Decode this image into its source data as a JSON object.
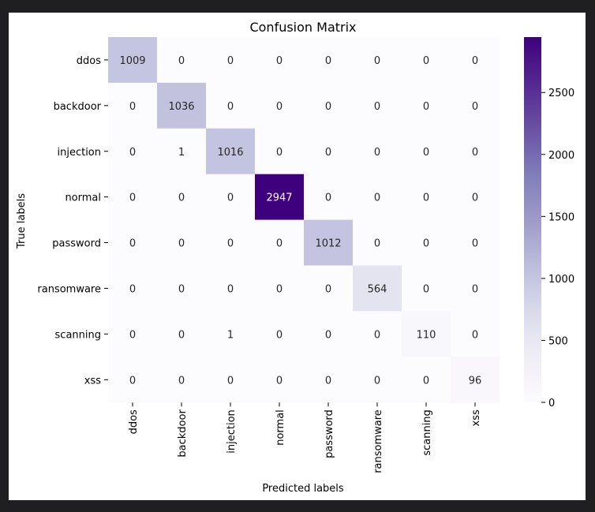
{
  "chart_data": {
    "type": "heatmap",
    "title": "Confusion Matrix",
    "xlabel": "Predicted labels",
    "ylabel": "True labels",
    "row_labels": [
      "ddos",
      "backdoor",
      "injection",
      "normal",
      "password",
      "ransomware",
      "scanning",
      "xss"
    ],
    "col_labels": [
      "ddos",
      "backdoor",
      "injection",
      "normal",
      "password",
      "ransomware",
      "scanning",
      "xss"
    ],
    "values": [
      [
        1009,
        0,
        0,
        0,
        0,
        0,
        0,
        0
      ],
      [
        0,
        1036,
        0,
        0,
        0,
        0,
        0,
        0
      ],
      [
        0,
        1,
        1016,
        0,
        0,
        0,
        0,
        0
      ],
      [
        0,
        0,
        0,
        2947,
        0,
        0,
        0,
        0
      ],
      [
        0,
        0,
        0,
        0,
        1012,
        0,
        0,
        0
      ],
      [
        0,
        0,
        0,
        0,
        0,
        564,
        0,
        0
      ],
      [
        0,
        0,
        1,
        0,
        0,
        0,
        110,
        0
      ],
      [
        0,
        0,
        0,
        0,
        0,
        0,
        0,
        96
      ]
    ],
    "colormap": "Purples",
    "color_low": "#fcfbfd",
    "color_high": "#3f007d",
    "colorbar": {
      "min": 0,
      "max": 2947,
      "ticks": [
        0,
        500,
        1000,
        1500,
        2000,
        2500
      ]
    }
  }
}
